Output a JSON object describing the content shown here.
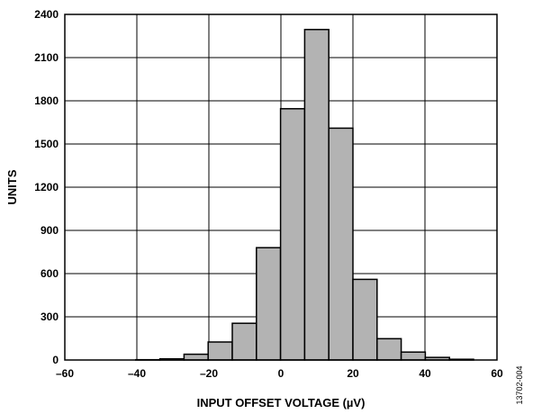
{
  "chart_data": {
    "type": "bar",
    "xlabel": "INPUT OFFSET VOLTAGE (µV)",
    "ylabel": "UNITS",
    "xlim": [
      -60,
      60
    ],
    "ylim": [
      0,
      2400
    ],
    "xticks": [
      -60,
      -40,
      -20,
      0,
      20,
      40,
      60
    ],
    "yticks": [
      0,
      300,
      600,
      900,
      1200,
      1500,
      1800,
      2100,
      2400
    ],
    "xtick_labels": [
      "–60",
      "–40",
      "–20",
      "0",
      "20",
      "40",
      "60"
    ],
    "ytick_labels": [
      "0",
      "300",
      "600",
      "900",
      "1200",
      "1500",
      "1800",
      "2100",
      "2400"
    ],
    "grid": true,
    "bin_width": 6.7,
    "bins": [
      {
        "x0": -40.3,
        "value": 2
      },
      {
        "x0": -33.6,
        "value": 8
      },
      {
        "x0": -26.9,
        "value": 40
      },
      {
        "x0": -20.2,
        "value": 125
      },
      {
        "x0": -13.5,
        "value": 255
      },
      {
        "x0": -6.8,
        "value": 780
      },
      {
        "x0": -0.1,
        "value": 1745
      },
      {
        "x0": 6.6,
        "value": 2295
      },
      {
        "x0": 13.3,
        "value": 1610
      },
      {
        "x0": 20.0,
        "value": 560
      },
      {
        "x0": 26.7,
        "value": 148
      },
      {
        "x0": 33.4,
        "value": 55
      },
      {
        "x0": 40.1,
        "value": 18
      },
      {
        "x0": 46.8,
        "value": 5
      }
    ],
    "bar_color": "#b3b3b3",
    "edge_color": "#000000"
  },
  "figure_id": "13702-004"
}
